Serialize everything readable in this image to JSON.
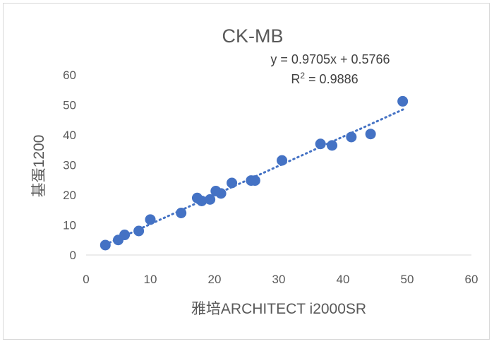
{
  "chart_data": {
    "type": "scatter",
    "title": "CK-MB",
    "xlabel": "雅培ARCHITECT i2000SR",
    "ylabel": "基蛋1200",
    "xlim": [
      0,
      60
    ],
    "ylim": [
      0,
      60
    ],
    "xticks": [
      "0",
      "10",
      "20",
      "30",
      "40",
      "50",
      "60"
    ],
    "yticks": [
      "0",
      "10",
      "20",
      "30",
      "40",
      "50",
      "60"
    ],
    "grid": false,
    "legend": "none",
    "marker_color": "#4472c4",
    "trendline": {
      "type": "linear",
      "slope": 0.9705,
      "intercept": 0.5766,
      "x_range": [
        3,
        49.5
      ],
      "style": "dotted",
      "equation_label": "y = 0.9705x + 0.5766",
      "r2_label_prefix": "R",
      "r2_label_sup": "2",
      "r2_label_suffix": " = 0.9886"
    },
    "points": [
      [
        3,
        3.3
      ],
      [
        5,
        5
      ],
      [
        6,
        6.7
      ],
      [
        8.2,
        8
      ],
      [
        10,
        11.8
      ],
      [
        14.8,
        14
      ],
      [
        17.3,
        19
      ],
      [
        18,
        18
      ],
      [
        19.3,
        18.5
      ],
      [
        20.2,
        21.3
      ],
      [
        21,
        20.5
      ],
      [
        22.7,
        24
      ],
      [
        25.7,
        24.8
      ],
      [
        26.3,
        24.8
      ],
      [
        30.5,
        31.5
      ],
      [
        36.5,
        37
      ],
      [
        38.3,
        36.5
      ],
      [
        41.3,
        39.3
      ],
      [
        44.3,
        40.3
      ],
      [
        49.3,
        51.2
      ]
    ]
  }
}
